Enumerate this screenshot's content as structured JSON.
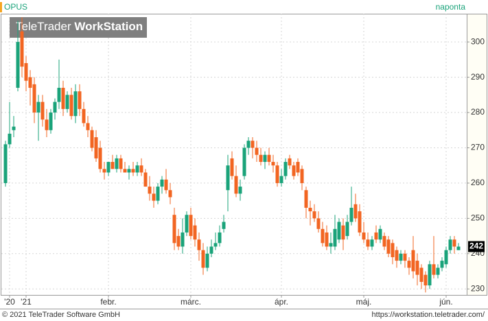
{
  "chart_data": {
    "type": "candlestick",
    "symbol": "OPUS",
    "interval": "naponta",
    "watermark": [
      "TeleTrader",
      "WorkStation"
    ],
    "footer_left": "© 2021 TeleTrader Software GmbH",
    "footer_right": "https://workstation.teletrader.com/",
    "up_color": "#1aa37a",
    "down_color": "#f26522",
    "grid": true,
    "ylim": [
      228.3,
      308
    ],
    "yticks": [
      230,
      240,
      250,
      260,
      270,
      280,
      290,
      300
    ],
    "xlim": [
      -1,
      112
    ],
    "xticks": [
      {
        "value": 1,
        "label": "'20"
      },
      {
        "value": 5,
        "label": "'21"
      },
      {
        "value": 25,
        "label": "febr."
      },
      {
        "value": 45,
        "label": "márc."
      },
      {
        "value": 67,
        "label": "ápr."
      },
      {
        "value": 87,
        "label": "máj."
      },
      {
        "value": 107,
        "label": "jún."
      }
    ],
    "candles": [
      {
        "open": 260,
        "high": 272,
        "low": 259,
        "close": 271
      },
      {
        "open": 271,
        "high": 283,
        "low": 270,
        "close": 274
      },
      {
        "open": 275,
        "high": 279,
        "low": 273,
        "close": 276
      },
      {
        "open": 287,
        "high": 306,
        "low": 286,
        "close": 300
      },
      {
        "open": 303,
        "high": 307,
        "low": 290,
        "close": 293
      },
      {
        "open": 294,
        "high": 296,
        "low": 286,
        "close": 289
      },
      {
        "open": 290,
        "high": 292,
        "low": 282,
        "close": 287
      },
      {
        "open": 288,
        "high": 290,
        "low": 277,
        "close": 280
      },
      {
        "open": 280,
        "high": 285,
        "low": 272,
        "close": 283
      },
      {
        "open": 283,
        "high": 285,
        "low": 276,
        "close": 278
      },
      {
        "open": 278,
        "high": 281,
        "low": 273,
        "close": 275
      },
      {
        "open": 275,
        "high": 281,
        "low": 274,
        "close": 280
      },
      {
        "open": 280,
        "high": 284,
        "low": 278,
        "close": 283
      },
      {
        "open": 283,
        "high": 295,
        "low": 281,
        "close": 287
      },
      {
        "open": 287,
        "high": 289,
        "low": 279,
        "close": 281
      },
      {
        "open": 281,
        "high": 286,
        "low": 280,
        "close": 285
      },
      {
        "open": 285,
        "high": 287,
        "low": 278,
        "close": 279
      },
      {
        "open": 279,
        "high": 288,
        "low": 277,
        "close": 286
      },
      {
        "open": 286,
        "high": 288,
        "low": 279,
        "close": 281
      },
      {
        "open": 281,
        "high": 283,
        "low": 276,
        "close": 277
      },
      {
        "open": 277,
        "high": 279,
        "low": 273,
        "close": 275
      },
      {
        "open": 275,
        "high": 276,
        "low": 269,
        "close": 270
      },
      {
        "open": 273,
        "high": 275,
        "low": 266,
        "close": 267
      },
      {
        "open": 270,
        "high": 272,
        "low": 263,
        "close": 264
      },
      {
        "open": 264,
        "high": 266,
        "low": 261,
        "close": 263
      },
      {
        "open": 263,
        "high": 266,
        "low": 262,
        "close": 266
      },
      {
        "open": 266,
        "high": 268,
        "low": 264,
        "close": 264
      },
      {
        "open": 264,
        "high": 268,
        "low": 263,
        "close": 267
      },
      {
        "open": 267,
        "high": 268,
        "low": 263,
        "close": 264
      },
      {
        "open": 264,
        "high": 266,
        "low": 263,
        "close": 263
      },
      {
        "open": 263,
        "high": 265,
        "low": 261,
        "close": 264
      },
      {
        "open": 264,
        "high": 266,
        "low": 262,
        "close": 263
      },
      {
        "open": 263,
        "high": 266,
        "low": 262,
        "close": 265
      },
      {
        "open": 265,
        "high": 267,
        "low": 262,
        "close": 263
      },
      {
        "open": 263,
        "high": 264,
        "low": 259,
        "close": 259
      },
      {
        "open": 259,
        "high": 262,
        "low": 255,
        "close": 257
      },
      {
        "open": 257,
        "high": 259,
        "low": 253,
        "close": 255
      },
      {
        "open": 255,
        "high": 260,
        "low": 254,
        "close": 259
      },
      {
        "open": 259,
        "high": 262,
        "low": 257,
        "close": 261
      },
      {
        "open": 261,
        "high": 264,
        "low": 257,
        "close": 258
      },
      {
        "open": 258,
        "high": 260,
        "low": 254,
        "close": 256
      },
      {
        "open": 251,
        "high": 253,
        "low": 241,
        "close": 243
      },
      {
        "open": 245,
        "high": 247,
        "low": 241,
        "close": 242
      },
      {
        "open": 242,
        "high": 250,
        "low": 240,
        "close": 246
      },
      {
        "open": 246,
        "high": 252,
        "low": 245,
        "close": 251
      },
      {
        "open": 251,
        "high": 253,
        "low": 244,
        "close": 245
      },
      {
        "open": 248,
        "high": 250,
        "low": 242,
        "close": 244
      },
      {
        "open": 244,
        "high": 246,
        "low": 238,
        "close": 241
      },
      {
        "open": 241,
        "high": 243,
        "low": 234,
        "close": 236
      },
      {
        "open": 236,
        "high": 242,
        "low": 235,
        "close": 240
      },
      {
        "open": 240,
        "high": 244,
        "low": 239,
        "close": 242
      },
      {
        "open": 242,
        "high": 246,
        "low": 241,
        "close": 243
      },
      {
        "open": 243,
        "high": 248,
        "low": 242,
        "close": 246
      },
      {
        "open": 247,
        "high": 251,
        "low": 246,
        "close": 249
      },
      {
        "open": 258,
        "high": 268,
        "low": 252,
        "close": 265
      },
      {
        "open": 267,
        "high": 269,
        "low": 261,
        "close": 262
      },
      {
        "open": 262,
        "high": 265,
        "low": 256,
        "close": 257
      },
      {
        "open": 257,
        "high": 261,
        "low": 255,
        "close": 259
      },
      {
        "open": 262,
        "high": 271,
        "low": 261,
        "close": 270
      },
      {
        "open": 270,
        "high": 273,
        "low": 268,
        "close": 272
      },
      {
        "open": 272,
        "high": 273,
        "low": 267,
        "close": 270
      },
      {
        "open": 270,
        "high": 272,
        "low": 266,
        "close": 268
      },
      {
        "open": 268,
        "high": 270,
        "low": 265,
        "close": 266
      },
      {
        "open": 266,
        "high": 269,
        "low": 264,
        "close": 268
      },
      {
        "open": 268,
        "high": 270,
        "low": 265,
        "close": 266
      },
      {
        "open": 266,
        "high": 268,
        "low": 263,
        "close": 265
      },
      {
        "open": 265,
        "high": 266,
        "low": 259,
        "close": 260
      },
      {
        "open": 260,
        "high": 264,
        "low": 259,
        "close": 262
      },
      {
        "open": 262,
        "high": 267,
        "low": 261,
        "close": 266
      },
      {
        "open": 267,
        "high": 268,
        "low": 264,
        "close": 265
      },
      {
        "open": 265,
        "high": 266,
        "low": 261,
        "close": 262
      },
      {
        "open": 266,
        "high": 267,
        "low": 262,
        "close": 263
      },
      {
        "open": 264,
        "high": 265,
        "low": 258,
        "close": 260
      },
      {
        "open": 258,
        "high": 259,
        "low": 250,
        "close": 253
      },
      {
        "open": 253,
        "high": 255,
        "low": 248,
        "close": 252
      },
      {
        "open": 252,
        "high": 254,
        "low": 249,
        "close": 250
      },
      {
        "open": 250,
        "high": 252,
        "low": 246,
        "close": 247
      },
      {
        "open": 247,
        "high": 249,
        "low": 242,
        "close": 243
      },
      {
        "open": 246,
        "high": 248,
        "low": 241,
        "close": 242
      },
      {
        "open": 242,
        "high": 246,
        "low": 240,
        "close": 243
      },
      {
        "open": 242,
        "high": 251,
        "low": 241,
        "close": 247
      },
      {
        "open": 244,
        "high": 250,
        "low": 243,
        "close": 249
      },
      {
        "open": 248,
        "high": 250,
        "low": 241,
        "close": 244
      },
      {
        "open": 245,
        "high": 251,
        "low": 244,
        "close": 249
      },
      {
        "open": 249,
        "high": 259,
        "low": 248,
        "close": 253
      },
      {
        "open": 254,
        "high": 257,
        "low": 249,
        "close": 250
      },
      {
        "open": 252,
        "high": 254,
        "low": 245,
        "close": 246
      },
      {
        "open": 246,
        "high": 249,
        "low": 243,
        "close": 244
      },
      {
        "open": 244,
        "high": 246,
        "low": 241,
        "close": 242
      },
      {
        "open": 242,
        "high": 245,
        "low": 241,
        "close": 244
      },
      {
        "open": 246,
        "high": 248,
        "low": 243,
        "close": 244
      },
      {
        "open": 244,
        "high": 248,
        "low": 243,
        "close": 247
      },
      {
        "open": 245,
        "high": 246,
        "low": 241,
        "close": 242
      },
      {
        "open": 244,
        "high": 245,
        "low": 239,
        "close": 240
      },
      {
        "open": 243,
        "high": 244,
        "low": 237,
        "close": 239
      },
      {
        "open": 241,
        "high": 242,
        "low": 236,
        "close": 238
      },
      {
        "open": 238,
        "high": 241,
        "low": 237,
        "close": 240
      },
      {
        "open": 240,
        "high": 241,
        "low": 236,
        "close": 238
      },
      {
        "open": 238,
        "high": 239,
        "low": 234,
        "close": 236
      },
      {
        "open": 241,
        "high": 245,
        "low": 233,
        "close": 235
      },
      {
        "open": 238,
        "high": 240,
        "low": 231,
        "close": 234
      },
      {
        "open": 236,
        "high": 237,
        "low": 230,
        "close": 232
      },
      {
        "open": 234,
        "high": 235,
        "low": 229,
        "close": 231
      },
      {
        "open": 231,
        "high": 238,
        "low": 230,
        "close": 237
      },
      {
        "open": 237,
        "high": 245,
        "low": 233,
        "close": 234
      },
      {
        "open": 234,
        "high": 237,
        "low": 233,
        "close": 236
      },
      {
        "open": 236,
        "high": 239,
        "low": 235,
        "close": 238
      },
      {
        "open": 237,
        "high": 242,
        "low": 236,
        "close": 241
      },
      {
        "open": 241,
        "high": 245,
        "low": 240,
        "close": 244
      },
      {
        "open": 244,
        "high": 245,
        "low": 240,
        "close": 242
      },
      {
        "open": 241,
        "high": 243,
        "low": 241,
        "close": 242
      }
    ]
  }
}
